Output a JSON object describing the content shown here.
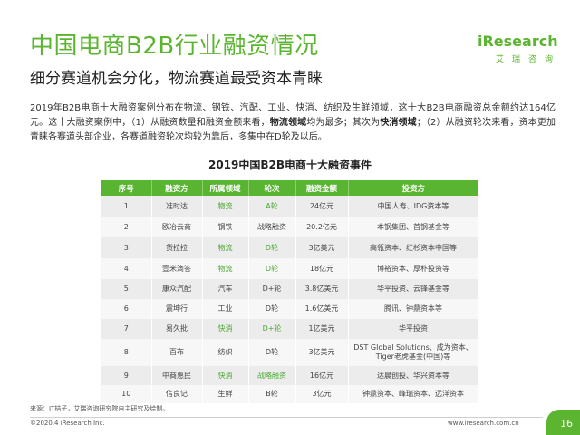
{
  "header": {
    "title": "中国电商B2B行业融资情况",
    "subtitle": "细分赛道机会分化，物流赛道最受资本青睐"
  },
  "logo": {
    "brand": "iResearch",
    "brand_cn": "艾瑞咨询"
  },
  "paragraph": {
    "part1": "2019年B2B电商十大融资案例分布在物流、钢铁、汽配、工业、快消、纺织及生鲜领域，这十大B2B电商融资总金额约达164亿元。这十大融资案例中，（1）从融资数量和融资金额来看，",
    "bold1": "物流领域",
    "part2": "均为最多；其次为",
    "bold2": "快消领域",
    "part3": "；（2）从融资轮次来看，资本更加青睐各赛道头部企业，各赛道融资轮次均较为靠后，多集中在D轮及以后。"
  },
  "table": {
    "title": "2019中国B2B电商十大融资事件",
    "headers": [
      "序号",
      "融资方",
      "所属领域",
      "轮次",
      "融资金额",
      "投资方"
    ],
    "rows": [
      {
        "no": "1",
        "company": "准时达",
        "field": "物流",
        "round": "A轮",
        "amount": "24亿元",
        "investor": "中国人寿、IDG资本等"
      },
      {
        "no": "2",
        "company": "欧冶云商",
        "field": "钢铁",
        "round": "战略融资",
        "amount": "20.2亿元",
        "investor": "本钢集团、首钢基金等"
      },
      {
        "no": "3",
        "company": "货拉拉",
        "field": "物流",
        "round": "D轮",
        "amount": "3亿美元",
        "investor": "高瓴资本、红杉资本中国等"
      },
      {
        "no": "4",
        "company": "壹米滴答",
        "field": "物流",
        "round": "D轮",
        "amount": "18亿元",
        "investor": "博裕资本、厚朴投资等"
      },
      {
        "no": "5",
        "company": "康众汽配",
        "field": "汽车",
        "round": "D+轮",
        "amount": "3.8亿美元",
        "investor": "华平投资、云锋基金等"
      },
      {
        "no": "6",
        "company": "震坤行",
        "field": "工业",
        "round": "D轮",
        "amount": "1.6亿美元",
        "investor": "腾讯、钟鼎资本等"
      },
      {
        "no": "7",
        "company": "易久批",
        "field": "快消",
        "round": "D+轮",
        "amount": "1亿美元",
        "investor": "华平投资"
      },
      {
        "no": "8",
        "company": "百布",
        "field": "纺织",
        "round": "D轮",
        "amount": "3亿美元",
        "investor": "DST Global Solutions、成为资本、Tiger老虎基金(中国)等"
      },
      {
        "no": "9",
        "company": "中商惠民",
        "field": "快消",
        "round": "战略融资",
        "amount": "16亿元",
        "investor": "达晨创投、华兴资本等"
      },
      {
        "no": "10",
        "company": "信良记",
        "field": "生鲜",
        "round": "B轮",
        "amount": "3亿元",
        "investor": "钟鼎资本、峰瑞资本、远洋资本"
      }
    ]
  },
  "source": "来源：IT桔子，艾瑞咨询研究院自主研究及绘制。",
  "footer": {
    "copyright": "©2020.4 iResearch Inc.",
    "website": "www.iresearch.com.cn",
    "page": "16"
  },
  "colors": {
    "accent": "#5cb531",
    "header_bg": "#58b431",
    "highlight_text": "#4aa72e"
  }
}
